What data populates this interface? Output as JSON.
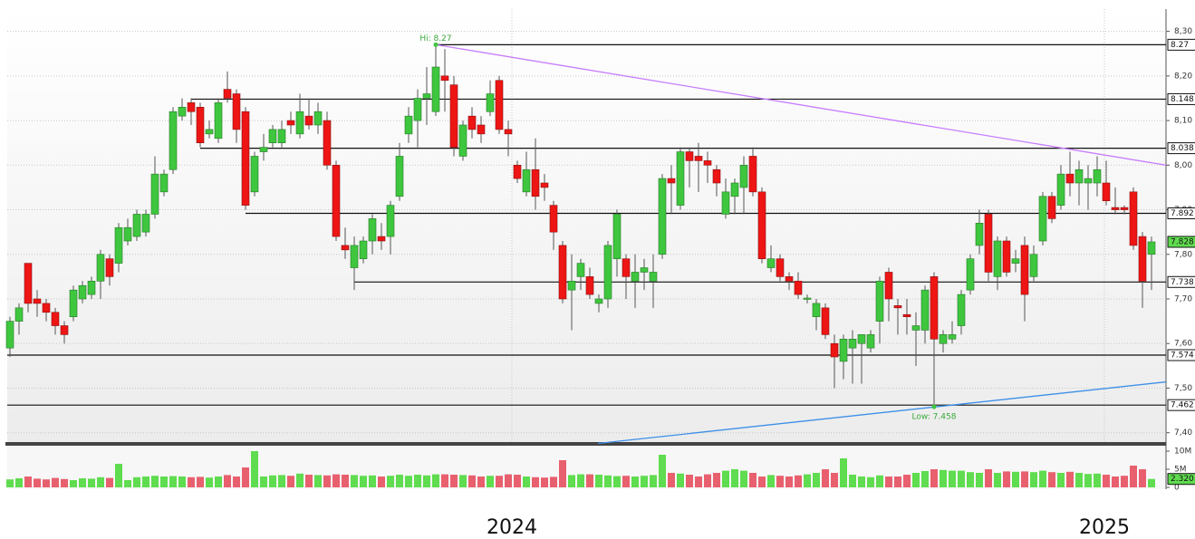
{
  "chart_data": {
    "type": "candlestick",
    "ylim": [
      7.375,
      8.35
    ],
    "yticks": [
      {
        "value": 8.3,
        "label": "8,30"
      },
      {
        "value": 8.2,
        "label": "8,20"
      },
      {
        "value": 8.1,
        "label": "8,10"
      },
      {
        "value": 8.0,
        "label": "8,00"
      },
      {
        "value": 7.9,
        "label": "7,90"
      },
      {
        "value": 7.8,
        "label": "7,80"
      },
      {
        "value": 7.7,
        "label": "7,70"
      },
      {
        "value": 7.6,
        "label": "7,60"
      },
      {
        "value": 7.5,
        "label": "7,50"
      },
      {
        "value": 7.4,
        "label": "7,40"
      }
    ],
    "y2lim": [
      -0.5,
      11.5
    ],
    "y2ticks": [
      {
        "value": 10,
        "label": "10M"
      },
      {
        "value": 5,
        "label": "5M"
      },
      0
    ],
    "xticks": [
      {
        "value": 55.4,
        "label": "2024"
      },
      {
        "value": 120.8,
        "label": "2025"
      }
    ],
    "grid": true,
    "up_color": "#3fc63f",
    "down_color": "#ee1515",
    "ohlc": [
      [
        7.59,
        7.66,
        7.57,
        7.65
      ],
      [
        7.65,
        7.69,
        7.62,
        7.68
      ],
      [
        7.78,
        7.78,
        7.67,
        7.69
      ],
      [
        7.7,
        7.72,
        7.66,
        7.69
      ],
      [
        7.69,
        7.7,
        7.65,
        7.67
      ],
      [
        7.67,
        7.68,
        7.62,
        7.64
      ],
      [
        7.64,
        7.65,
        7.6,
        7.62
      ],
      [
        7.66,
        7.73,
        7.65,
        7.72
      ],
      [
        7.7,
        7.74,
        7.69,
        7.73
      ],
      [
        7.71,
        7.75,
        7.7,
        7.74
      ],
      [
        7.74,
        7.81,
        7.7,
        7.8
      ],
      [
        7.79,
        7.8,
        7.73,
        7.75
      ],
      [
        7.78,
        7.87,
        7.76,
        7.86
      ],
      [
        7.83,
        7.88,
        7.82,
        7.86
      ],
      [
        7.84,
        7.9,
        7.83,
        7.89
      ],
      [
        7.85,
        7.9,
        7.84,
        7.89
      ],
      [
        7.89,
        8.02,
        7.88,
        7.98
      ],
      [
        7.94,
        7.99,
        7.93,
        7.98
      ],
      [
        7.99,
        8.13,
        7.98,
        8.12
      ],
      [
        8.11,
        8.15,
        8.1,
        8.13
      ],
      [
        8.14,
        8.15,
        8.09,
        8.12
      ],
      [
        8.13,
        8.14,
        8.04,
        8.05
      ],
      [
        8.07,
        8.1,
        8.06,
        8.08
      ],
      [
        8.06,
        8.15,
        8.05,
        8.14
      ],
      [
        8.17,
        8.21,
        8.14,
        8.15
      ],
      [
        8.16,
        8.17,
        8.05,
        8.08
      ],
      [
        8.12,
        8.13,
        7.9,
        7.91
      ],
      [
        7.94,
        8.03,
        7.93,
        8.02
      ],
      [
        8.03,
        8.07,
        8.01,
        8.04
      ],
      [
        8.05,
        8.09,
        8.04,
        8.08
      ],
      [
        8.05,
        8.1,
        8.04,
        8.08
      ],
      [
        8.1,
        8.12,
        8.07,
        8.09
      ],
      [
        8.07,
        8.16,
        8.06,
        8.12
      ],
      [
        8.11,
        8.15,
        8.08,
        8.09
      ],
      [
        8.09,
        8.14,
        8.07,
        8.12
      ],
      [
        8.1,
        8.12,
        7.99,
        8.0
      ],
      [
        8.0,
        8.01,
        7.83,
        7.84
      ],
      [
        7.82,
        7.86,
        7.79,
        7.81
      ],
      [
        7.77,
        7.84,
        7.72,
        7.82
      ],
      [
        7.79,
        7.84,
        7.78,
        7.83
      ],
      [
        7.83,
        7.89,
        7.8,
        7.88
      ],
      [
        7.84,
        7.87,
        7.81,
        7.83
      ],
      [
        7.84,
        7.92,
        7.8,
        7.91
      ],
      [
        7.93,
        8.05,
        7.92,
        8.02
      ],
      [
        8.07,
        8.13,
        8.05,
        8.11
      ],
      [
        8.1,
        8.17,
        8.04,
        8.15
      ],
      [
        8.15,
        8.22,
        8.09,
        8.16
      ],
      [
        8.12,
        8.27,
        8.11,
        8.22
      ],
      [
        8.2,
        8.26,
        8.12,
        8.19
      ],
      [
        8.18,
        8.2,
        8.02,
        8.04
      ],
      [
        8.02,
        8.1,
        8.01,
        8.09
      ],
      [
        8.11,
        8.13,
        8.06,
        8.08
      ],
      [
        8.09,
        8.11,
        8.05,
        8.07
      ],
      [
        8.12,
        8.19,
        8.11,
        8.16
      ],
      [
        8.19,
        8.2,
        8.07,
        8.08
      ],
      [
        8.08,
        8.1,
        8.02,
        8.07
      ],
      [
        8.0,
        8.01,
        7.96,
        7.97
      ],
      [
        7.94,
        8.03,
        7.93,
        7.99
      ],
      [
        7.99,
        8.06,
        7.9,
        7.93
      ],
      [
        7.96,
        7.98,
        7.92,
        7.95
      ],
      [
        7.91,
        7.92,
        7.81,
        7.85
      ],
      [
        7.82,
        7.83,
        7.69,
        7.7
      ],
      [
        7.72,
        7.8,
        7.63,
        7.74
      ],
      [
        7.75,
        7.79,
        7.72,
        7.78
      ],
      [
        7.75,
        7.77,
        7.7,
        7.71
      ],
      [
        7.69,
        7.71,
        7.67,
        7.7
      ],
      [
        7.7,
        7.83,
        7.68,
        7.82
      ],
      [
        7.79,
        7.9,
        7.75,
        7.89
      ],
      [
        7.79,
        7.8,
        7.7,
        7.75
      ],
      [
        7.74,
        7.8,
        7.68,
        7.76
      ],
      [
        7.76,
        7.79,
        7.72,
        7.77
      ],
      [
        7.74,
        7.8,
        7.68,
        7.76
      ],
      [
        7.8,
        7.98,
        7.79,
        7.97
      ],
      [
        7.97,
        8.0,
        7.89,
        7.96
      ],
      [
        7.91,
        8.04,
        7.9,
        8.03
      ],
      [
        8.03,
        8.04,
        7.95,
        8.01
      ],
      [
        8.02,
        8.05,
        7.94,
        8.01
      ],
      [
        8.01,
        8.03,
        7.96,
        8.0
      ],
      [
        7.99,
        8.0,
        7.93,
        7.96
      ],
      [
        7.89,
        7.97,
        7.88,
        7.94
      ],
      [
        7.93,
        7.97,
        7.89,
        7.96
      ],
      [
        7.95,
        8.02,
        7.89,
        8.0
      ],
      [
        8.02,
        8.04,
        7.93,
        7.94
      ],
      [
        7.94,
        7.95,
        7.78,
        7.79
      ],
      [
        7.77,
        7.82,
        7.76,
        7.79
      ],
      [
        7.79,
        7.8,
        7.74,
        7.75
      ],
      [
        7.75,
        7.76,
        7.72,
        7.74
      ],
      [
        7.74,
        7.76,
        7.7,
        7.71
      ],
      [
        7.7,
        7.71,
        7.69,
        7.702
      ],
      [
        7.66,
        7.7,
        7.63,
        7.69
      ],
      [
        7.68,
        7.69,
        7.61,
        7.62
      ],
      [
        7.6,
        7.62,
        7.5,
        7.57
      ],
      [
        7.56,
        7.62,
        7.52,
        7.61
      ],
      [
        7.59,
        7.63,
        7.51,
        7.61
      ],
      [
        7.6,
        7.62,
        7.51,
        7.62
      ],
      [
        7.59,
        7.63,
        7.58,
        7.62
      ],
      [
        7.65,
        7.75,
        7.6,
        7.74
      ],
      [
        7.76,
        7.77,
        7.65,
        7.7
      ],
      [
        7.685,
        7.7,
        7.62,
        7.68
      ],
      [
        7.665,
        7.7,
        7.62,
        7.66
      ],
      [
        7.63,
        7.67,
        7.55,
        7.64
      ],
      [
        7.63,
        7.73,
        7.6,
        7.72
      ],
      [
        7.75,
        7.76,
        7.458,
        7.61
      ],
      [
        7.6,
        7.63,
        7.58,
        7.62
      ],
      [
        7.61,
        7.65,
        7.6,
        7.62
      ],
      [
        7.64,
        7.72,
        7.62,
        7.71
      ],
      [
        7.72,
        7.8,
        7.71,
        7.79
      ],
      [
        7.82,
        7.9,
        7.8,
        7.87
      ],
      [
        7.89,
        7.9,
        7.74,
        7.76
      ],
      [
        7.75,
        7.84,
        7.72,
        7.83
      ],
      [
        7.83,
        7.84,
        7.75,
        7.76
      ],
      [
        7.78,
        7.81,
        7.76,
        7.79
      ],
      [
        7.82,
        7.84,
        7.65,
        7.71
      ],
      [
        7.75,
        7.82,
        7.74,
        7.8
      ],
      [
        7.83,
        7.94,
        7.82,
        7.93
      ],
      [
        7.93,
        7.94,
        7.87,
        7.88
      ],
      [
        7.91,
        8.0,
        7.9,
        7.98
      ],
      [
        7.98,
        8.03,
        7.93,
        7.96
      ],
      [
        7.96,
        8.01,
        7.91,
        7.99
      ],
      [
        7.96,
        8.0,
        7.9,
        7.97
      ],
      [
        7.96,
        8.02,
        7.93,
        7.99
      ],
      [
        7.96,
        8.01,
        7.91,
        7.92
      ],
      [
        7.905,
        7.95,
        7.89,
        7.9
      ],
      [
        7.905,
        7.91,
        7.89,
        7.9
      ],
      [
        7.94,
        7.95,
        7.81,
        7.82
      ],
      [
        7.84,
        7.85,
        7.68,
        7.74
      ],
      [
        7.8,
        7.84,
        7.72,
        7.828
      ]
    ],
    "volume": [
      2.2,
      2.5,
      3.0,
      2.4,
      2.2,
      2.6,
      2.3,
      2.0,
      2.5,
      2.4,
      2.8,
      2.6,
      6.5,
      2.0,
      2.8,
      3.0,
      3.2,
      3.0,
      3.1,
      3.0,
      2.8,
      2.9,
      2.7,
      3.0,
      3.4,
      3.0,
      5.5,
      10.0,
      3.0,
      3.3,
      3.4,
      3.2,
      3.8,
      3.5,
      3.4,
      3.3,
      3.6,
      3.5,
      3.4,
      3.2,
      3.3,
      3.0,
      3.2,
      3.5,
      3.2,
      3.5,
      3.3,
      3.6,
      3.6,
      3.5,
      3.4,
      3.3,
      3.0,
      3.2,
      3.2,
      3.6,
      3.5,
      3.0,
      2.8,
      2.7,
      2.9,
      7.5,
      3.4,
      3.6,
      3.6,
      3.5,
      3.3,
      3.1,
      3.2,
      3.0,
      3.2,
      3.4,
      9.0,
      4.0,
      3.8,
      3.5,
      3.0,
      3.6,
      4.0,
      4.6,
      5.0,
      4.6,
      4.0,
      3.0,
      3.4,
      3.2,
      3.0,
      3.3,
      3.6,
      4.0,
      5.0,
      4.0,
      8.0,
      3.5,
      3.0,
      2.8,
      3.3,
      3.0,
      3.0,
      3.5,
      4.0,
      4.5,
      5.0,
      4.8,
      4.6,
      4.6,
      4.2,
      4.0,
      5.0,
      4.0,
      4.4,
      4.3,
      4.4,
      4.2,
      4.6,
      4.2,
      4.0,
      4.3,
      4.0,
      3.7,
      3.8,
      3.5,
      3.0,
      3.2,
      6.0,
      5.0,
      2.32
    ],
    "volume_last": {
      "value": 2.32,
      "label": "2.320"
    },
    "volume_up_color": "#5fdc4f",
    "volume_down_color": "#e8606e",
    "last_price": 7.828,
    "levels": [
      {
        "value": 8.27,
        "start": 47
      },
      {
        "value": 8.148,
        "start": 20
      },
      {
        "value": 8.038,
        "start": 21
      },
      {
        "value": 7.892,
        "start": 26
      },
      {
        "value": 7.738,
        "start": 38
      },
      {
        "value": 7.574,
        "start": -0.3
      },
      {
        "value": 7.462,
        "start": -0.3
      }
    ],
    "trendlines": [
      {
        "color": "#c77dff",
        "x": [
          47,
          127.6
        ],
        "y": [
          8.27,
          8.0
        ]
      },
      {
        "color": "#3d8fe8",
        "x": [
          64.9,
          127.6
        ],
        "y": [
          7.376,
          7.514
        ]
      }
    ],
    "annotations": [
      {
        "text": "Hi: 8.27",
        "index": 47,
        "value": 8.27
      },
      {
        "text": "Low: 7.458",
        "index": 102,
        "value": 7.458
      }
    ]
  }
}
